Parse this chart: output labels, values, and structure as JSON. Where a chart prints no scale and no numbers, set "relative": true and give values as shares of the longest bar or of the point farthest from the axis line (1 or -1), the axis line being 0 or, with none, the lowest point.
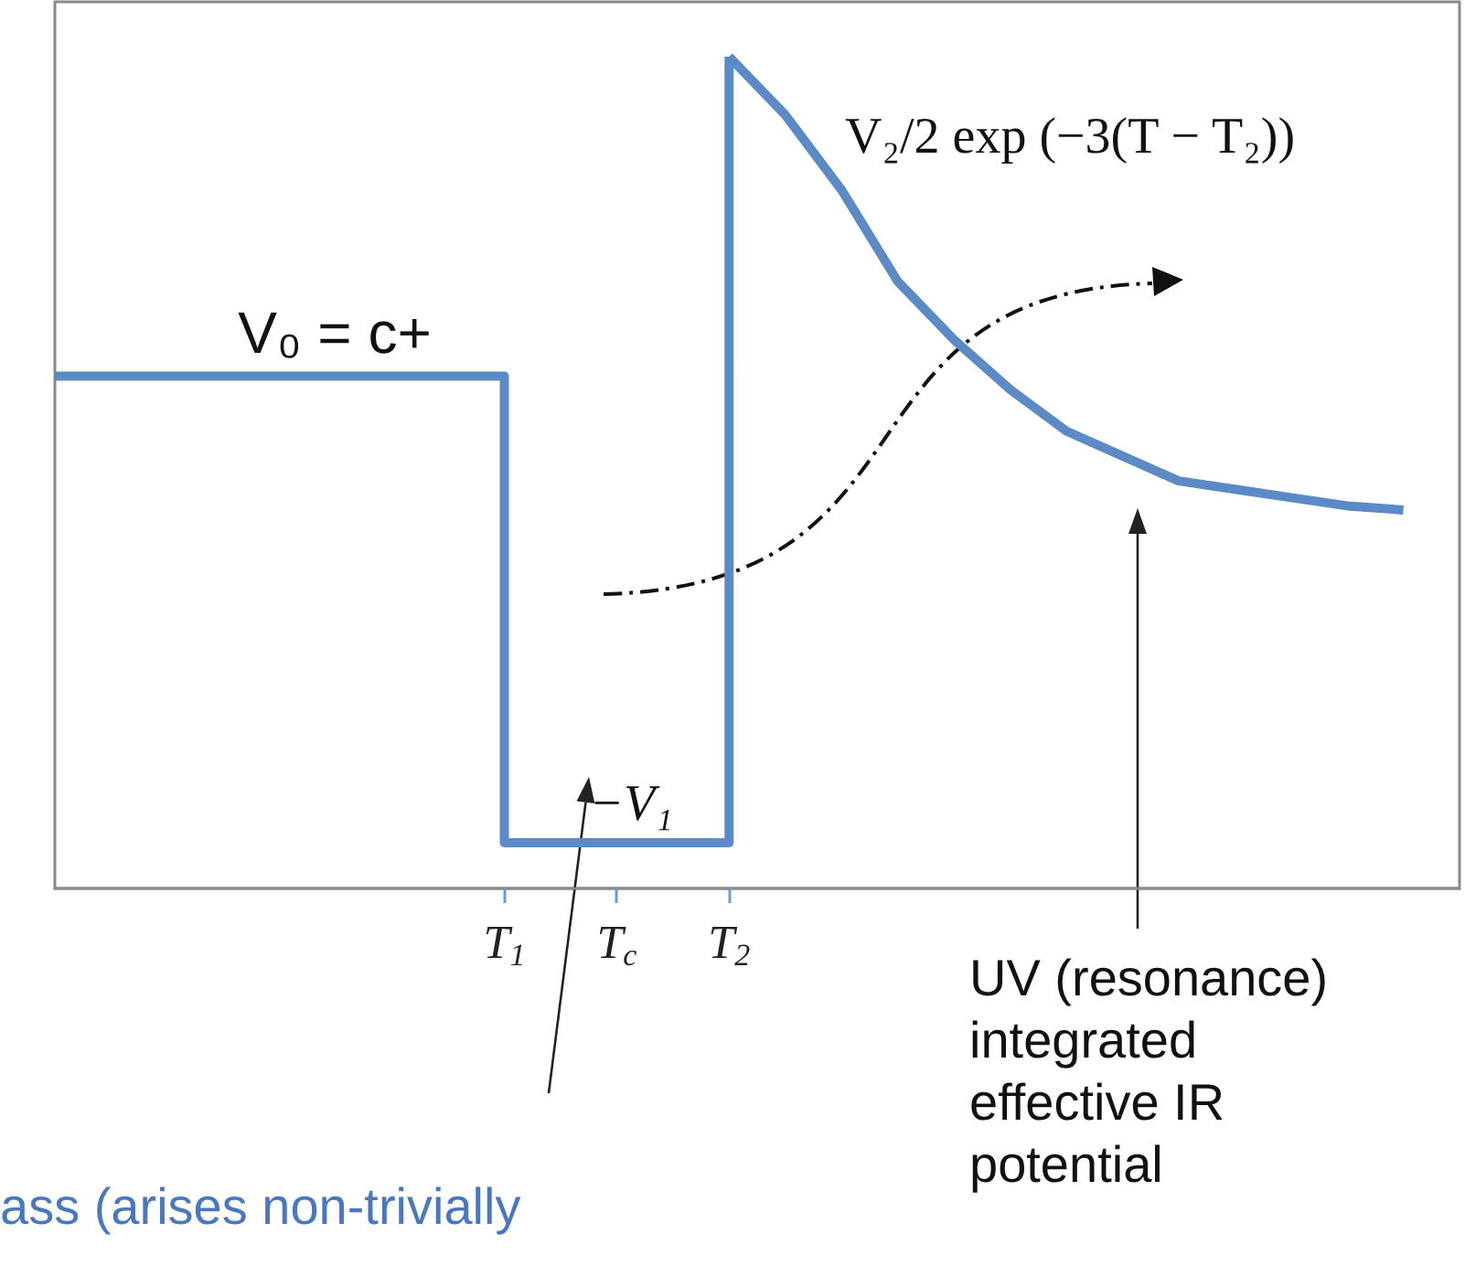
{
  "chart_data": {
    "type": "line",
    "relative": true,
    "marker": "none",
    "grid": false,
    "tick_labels": "x",
    "categories": [
      null,
      null,
      null,
      null,
      null,
      null,
      null,
      null,
      "T$_{1}$",
      null,
      "T$_{c}$",
      null,
      "T$_{2}$",
      null,
      null,
      null,
      null,
      null,
      null,
      null,
      null,
      null,
      null,
      null,
      null,
      null
    ],
    "series": [
      {
        "type": "step",
        "color": "#5b8ac6",
        "values": [
          0.616,
          0.616,
          0.616,
          0.616,
          0.616,
          0.616,
          0.616,
          0.616,
          0.055,
          0.055,
          0.055,
          0.055,
          1,
          null,
          null,
          null,
          null,
          null,
          null,
          null,
          null,
          null,
          null,
          null,
          null,
          null
        ]
      },
      {
        "color": "#5b8ac6",
        "values": [
          null,
          null,
          null,
          null,
          null,
          null,
          null,
          null,
          null,
          null,
          null,
          null,
          1,
          0.93,
          0.84,
          0.73,
          0.66,
          0.6,
          0.55,
          0.52,
          0.49,
          0.48,
          0.47,
          0.46,
          0.455,
          null
        ]
      }
    ],
    "annotations": [
      "V₀ = c+",
      "−V₁",
      "V₂/2 exp (−3(T − T₂))",
      "UV (resonance)\nintegrated\neffective IR\npotential",
      "ass (arises non-trivially"
    ]
  }
}
